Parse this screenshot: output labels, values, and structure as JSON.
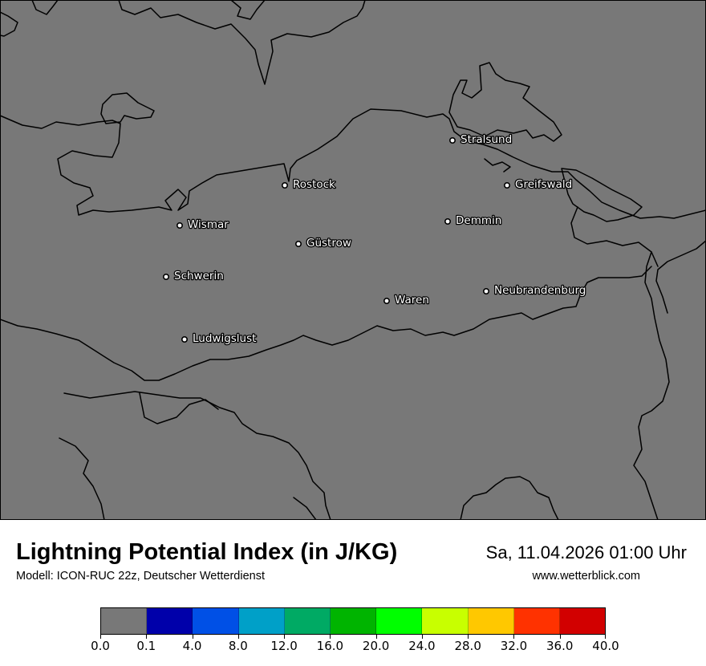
{
  "map": {
    "background_color": "#787878",
    "coastline_color": "#000000",
    "cities": [
      {
        "name": "Stralsund"
      },
      {
        "name": "Rostock"
      },
      {
        "name": "Greifswald"
      },
      {
        "name": "Wismar"
      },
      {
        "name": "Demmin"
      },
      {
        "name": "Güstrow"
      },
      {
        "name": "Schwerin"
      },
      {
        "name": "Neubrandenburg"
      },
      {
        "name": "Waren"
      },
      {
        "name": "Ludwigslust"
      }
    ]
  },
  "footer": {
    "title": "Lightning Potential Index (in J/KG)",
    "subtitle": "Modell: ICON-RUC 22z, Deutscher Wetterdienst",
    "datetime": "Sa, 11.04.2026 01:00 Uhr",
    "website": "www.wetterblick.com"
  },
  "legend": {
    "colors": [
      "#787878",
      "#0000aa",
      "#0050e6",
      "#00a0c8",
      "#00aa64",
      "#00b400",
      "#00ff00",
      "#c8ff00",
      "#ffc800",
      "#ff3200",
      "#d20000"
    ],
    "labels": [
      "0.0",
      "0.1",
      "4.0",
      "8.0",
      "12.0",
      "16.0",
      "20.0",
      "24.0",
      "28.0",
      "32.0",
      "36.0",
      "40.0"
    ]
  }
}
